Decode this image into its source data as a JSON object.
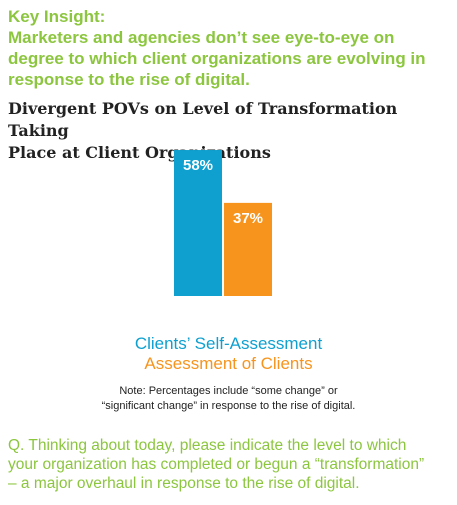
{
  "insight": {
    "heading": "Key Insight:",
    "line1": "Marketers and agencies don’t see eye-to-eye on",
    "line2": "degree to which client organizations are evolving in",
    "line3": "response to the rise of digital."
  },
  "note": {
    "line1": "Note: Percentages include “some change” or",
    "line2": "“significant change” in response to the rise of digital."
  },
  "question": {
    "line1": "Q. Thinking about today, please indicate the level to which",
    "line2": "your organization has completed or begun a “transformation”",
    "line3": "– a major overhaul in response to the rise of digital."
  },
  "colors": {
    "green": "#8cc63f",
    "blue": "#0fa0cf",
    "orange": "#f7941d"
  },
  "chart_data": {
    "type": "bar",
    "title": "Divergent POVs on Level of Transformation Taking Place at Client Organizations",
    "title_line1": "Divergent POVs on Level of Transformation Taking",
    "title_line2": "Place at Client Organizations",
    "ylim": [
      0,
      60
    ],
    "grid": false,
    "legend_placement": "below",
    "series": [
      {
        "name": "Clients’ Self-Assessment",
        "value": 58,
        "label": "58%",
        "color": "#0fa0cf"
      },
      {
        "name": "Assessment of Clients",
        "value": 37,
        "label": "37%",
        "color": "#f7941d"
      }
    ]
  }
}
